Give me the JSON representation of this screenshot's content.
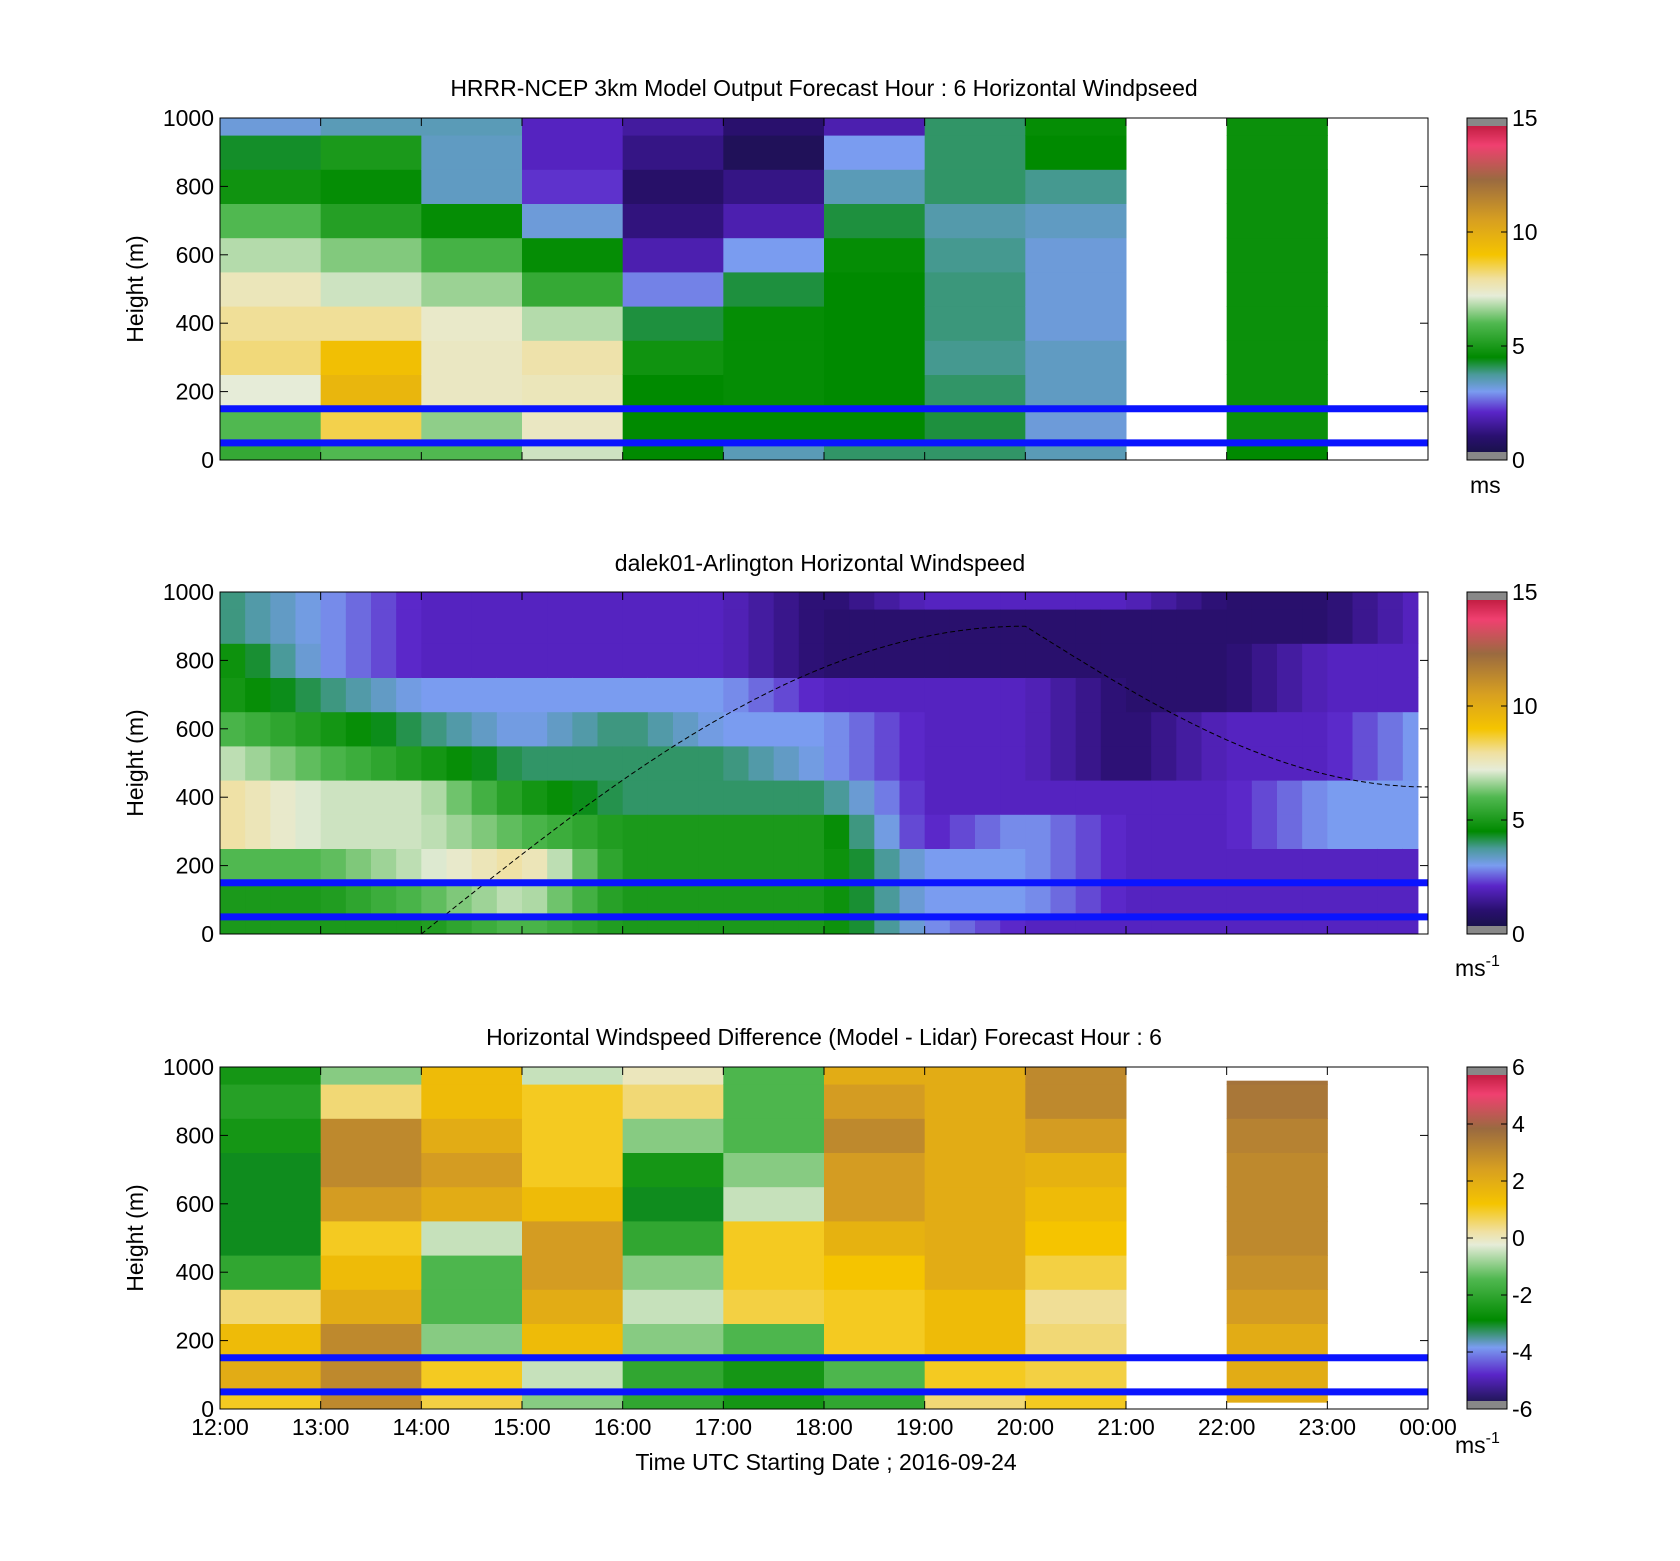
{
  "figure": {
    "xlabel": "Time UTC  Starting Date ; 2016-09-24",
    "x_ticks": [
      "12:00",
      "13:00",
      "14:00",
      "15:00",
      "16:00",
      "17:00",
      "18:00",
      "19:00",
      "20:00",
      "21:00",
      "22:00",
      "23:00",
      "00:00"
    ]
  },
  "chart_data": [
    {
      "type": "heatmap",
      "title": "HRRR-NCEP 3km Model Output   Forecast Hour : 6 Horizontal Windpseed",
      "ylabel": "Height (m)",
      "xlim": [
        12,
        24
      ],
      "ylim": [
        0,
        1000
      ],
      "y_ticks": [
        0,
        200,
        400,
        600,
        800,
        1000
      ],
      "colorbar": {
        "min": 0,
        "max": 15,
        "ticks": [
          0,
          5,
          10,
          15
        ],
        "unit": "ms",
        "unit_sup": "",
        "colormap": "speed"
      },
      "reference_lines_m": [
        150,
        50
      ],
      "missing_hours": [
        21,
        23
      ],
      "top_height_m": 1000,
      "cell_height_m": 100,
      "columns": [
        {
          "hour": 12,
          "values": [
            5.5,
            6.0,
            7.2,
            8.2,
            8.0,
            7.6,
            6.8,
            6.0,
            4.8,
            4.3,
            3.2
          ]
        },
        {
          "hour": 13,
          "values": [
            6.0,
            8.5,
            9.6,
            9.2,
            8.0,
            7.0,
            6.4,
            5.2,
            4.6,
            5.0,
            3.5
          ]
        },
        {
          "hour": 14,
          "values": [
            6.0,
            6.5,
            7.5,
            7.5,
            7.4,
            6.6,
            5.8,
            4.6,
            3.4,
            3.4,
            3.5
          ]
        },
        {
          "hour": 15,
          "values": [
            7.0,
            7.5,
            7.6,
            7.8,
            6.8,
            5.5,
            4.6,
            3.2,
            2.2,
            2.0,
            2.0
          ]
        },
        {
          "hour": 16,
          "values": [
            4.5,
            4.5,
            4.5,
            4.8,
            4.2,
            2.8,
            1.8,
            1.2,
            0.9,
            1.3,
            1.6
          ]
        },
        {
          "hour": 17,
          "values": [
            3.5,
            4.5,
            4.6,
            4.6,
            4.6,
            4.2,
            3.0,
            1.8,
            1.3,
            0.6,
            1.0
          ]
        },
        {
          "hour": 18,
          "values": [
            4.0,
            4.5,
            4.5,
            4.5,
            4.5,
            4.5,
            4.6,
            4.2,
            3.5,
            3.0,
            1.8
          ]
        },
        {
          "hour": 19,
          "values": [
            4.0,
            4.2,
            4.0,
            3.8,
            3.9,
            3.9,
            3.8,
            3.6,
            4.0,
            4.0,
            4.0
          ]
        },
        {
          "hour": 20,
          "values": [
            3.5,
            3.2,
            3.4,
            3.4,
            3.2,
            3.2,
            3.2,
            3.4,
            3.8,
            4.5,
            4.6
          ]
        },
        {
          "hour": 22,
          "values": [
            4.5,
            4.7,
            4.7,
            4.7,
            4.7,
            4.7,
            4.7,
            4.7,
            4.7,
            4.7,
            4.7
          ]
        }
      ]
    },
    {
      "type": "heatmap",
      "title": "dalek01-Arlington  Horizontal Windspeed",
      "ylabel": "Height (m)",
      "xlim": [
        12,
        24
      ],
      "ylim": [
        0,
        1000
      ],
      "y_ticks": [
        0,
        200,
        400,
        600,
        800,
        1000
      ],
      "colorbar": {
        "min": 0,
        "max": 15,
        "ticks": [
          0,
          5,
          10,
          15
        ],
        "unit": "ms",
        "unit_sup": "-1",
        "colormap": "speed"
      },
      "reference_lines_m": [
        150,
        50
      ],
      "column_width_h": 0.25,
      "data_end_hour": 23.9,
      "top_height_m": 1000,
      "cell_height_m": 100,
      "approx_profiles": [
        {
          "hour": 12.0,
          "values": [
            5,
            5,
            6,
            8,
            8,
            7,
            6,
            5,
            5,
            4,
            4
          ]
        },
        {
          "hour": 13.0,
          "values": [
            5,
            5,
            6,
            7,
            7,
            6,
            5,
            4,
            3,
            3,
            3
          ]
        },
        {
          "hour": 14.0,
          "values": [
            5,
            6,
            7,
            7,
            7,
            5,
            4,
            3,
            2,
            2,
            2
          ]
        },
        {
          "hour": 15.0,
          "values": [
            6,
            7,
            8,
            6,
            5,
            4,
            3,
            3,
            2,
            2,
            2
          ]
        },
        {
          "hour": 16.0,
          "values": [
            5,
            5,
            5,
            5,
            4,
            4,
            4,
            3,
            2,
            2,
            2
          ]
        },
        {
          "hour": 17.0,
          "values": [
            5,
            5,
            5,
            5,
            4,
            4,
            3,
            3,
            2,
            2,
            2
          ]
        },
        {
          "hour": 18.0,
          "values": [
            5,
            5,
            5,
            5,
            4,
            3,
            3,
            2,
            1,
            1,
            1
          ]
        },
        {
          "hour": 19.0,
          "values": [
            3,
            3,
            3,
            2,
            2,
            2,
            2,
            2,
            1,
            1,
            2
          ]
        },
        {
          "hour": 20.0,
          "values": [
            2,
            3,
            3,
            3,
            2,
            2,
            2,
            2,
            1,
            1,
            2
          ]
        },
        {
          "hour": 21.0,
          "values": [
            2,
            2,
            2,
            2,
            2,
            1,
            1,
            1,
            1,
            1,
            2
          ]
        },
        {
          "hour": 22.0,
          "values": [
            2,
            2,
            2,
            2,
            2,
            2,
            2,
            1,
            1,
            1,
            1
          ]
        },
        {
          "hour": 23.0,
          "values": [
            2,
            2,
            2,
            3,
            3,
            2,
            2,
            2,
            2,
            1,
            1
          ]
        },
        {
          "hour": 23.9,
          "values": [
            2,
            2,
            2,
            3,
            3,
            3,
            3,
            2,
            2,
            2,
            2
          ]
        }
      ],
      "mixing_layer_curve": {
        "start_hour": 14.0,
        "peak_hour": 20.0,
        "peak_height_m": 900,
        "end_hour": 24.0,
        "end_height_m": 430
      }
    },
    {
      "type": "heatmap",
      "title": "Horizontal Windspeed Difference (Model - Lidar) Forecast Hour : 6",
      "ylabel": "Height (m)",
      "xlim": [
        12,
        24
      ],
      "ylim": [
        0,
        1000
      ],
      "y_ticks": [
        0,
        200,
        400,
        600,
        800,
        1000
      ],
      "colorbar": {
        "min": -6,
        "max": 6,
        "ticks": [
          -6,
          -4,
          -2,
          0,
          2,
          4,
          6
        ],
        "unit": "ms",
        "unit_sup": "-1",
        "colormap": "diff"
      },
      "reference_lines_m": [
        150,
        50
      ],
      "missing_hours": [
        21,
        23
      ],
      "cell_height_m": 100,
      "columns": [
        {
          "hour": 12,
          "top_m": 1000,
          "values": [
            1,
            2,
            1.5,
            0.5,
            -2,
            -3,
            -3,
            -3,
            -2.5,
            -2.2,
            -2.5
          ]
        },
        {
          "hour": 13,
          "top_m": 1000,
          "values": [
            3,
            3,
            3,
            2,
            1.5,
            1,
            2.5,
            3,
            3,
            0.5,
            -1
          ]
        },
        {
          "hour": 14,
          "top_m": 1000,
          "values": [
            0.8,
            1,
            -1,
            -1.5,
            -1.5,
            -0.5,
            2,
            2.5,
            2,
            1.5,
            1.5
          ]
        },
        {
          "hour": 15,
          "top_m": 1000,
          "values": [
            -1,
            -0.5,
            1.5,
            2,
            2.5,
            2.5,
            1.5,
            1,
            1,
            1,
            -0.5
          ]
        },
        {
          "hour": 16,
          "top_m": 1000,
          "values": [
            -2,
            -2,
            -1,
            -0.5,
            -1,
            -2,
            -3,
            -2.5,
            -1,
            0.5,
            0
          ]
        },
        {
          "hour": 17,
          "top_m": 1000,
          "values": [
            -2.5,
            -2.5,
            -1.5,
            0.8,
            1,
            1,
            -0.5,
            -1,
            -1.5,
            -1.5,
            -1.5
          ]
        },
        {
          "hour": 18,
          "top_m": 1000,
          "values": [
            -2,
            -1.5,
            1,
            1,
            1.2,
            1.8,
            2.5,
            2.5,
            3,
            2.5,
            2
          ]
        },
        {
          "hour": 19,
          "top_m": 1000,
          "values": [
            0.5,
            1,
            1.5,
            1.5,
            2,
            2,
            2,
            2,
            2,
            2,
            2
          ]
        },
        {
          "hour": 20,
          "top_m": 1000,
          "values": [
            1,
            0.8,
            0.5,
            0.3,
            0.8,
            1.2,
            1.5,
            1.8,
            2.5,
            3,
            3
          ]
        },
        {
          "hour": 22,
          "top_m": 960,
          "bottom_m": 20,
          "values": [
            2,
            2,
            2,
            2.5,
            2.8,
            3,
            3,
            3,
            3.2,
            3.5,
            3.6
          ]
        }
      ]
    }
  ]
}
